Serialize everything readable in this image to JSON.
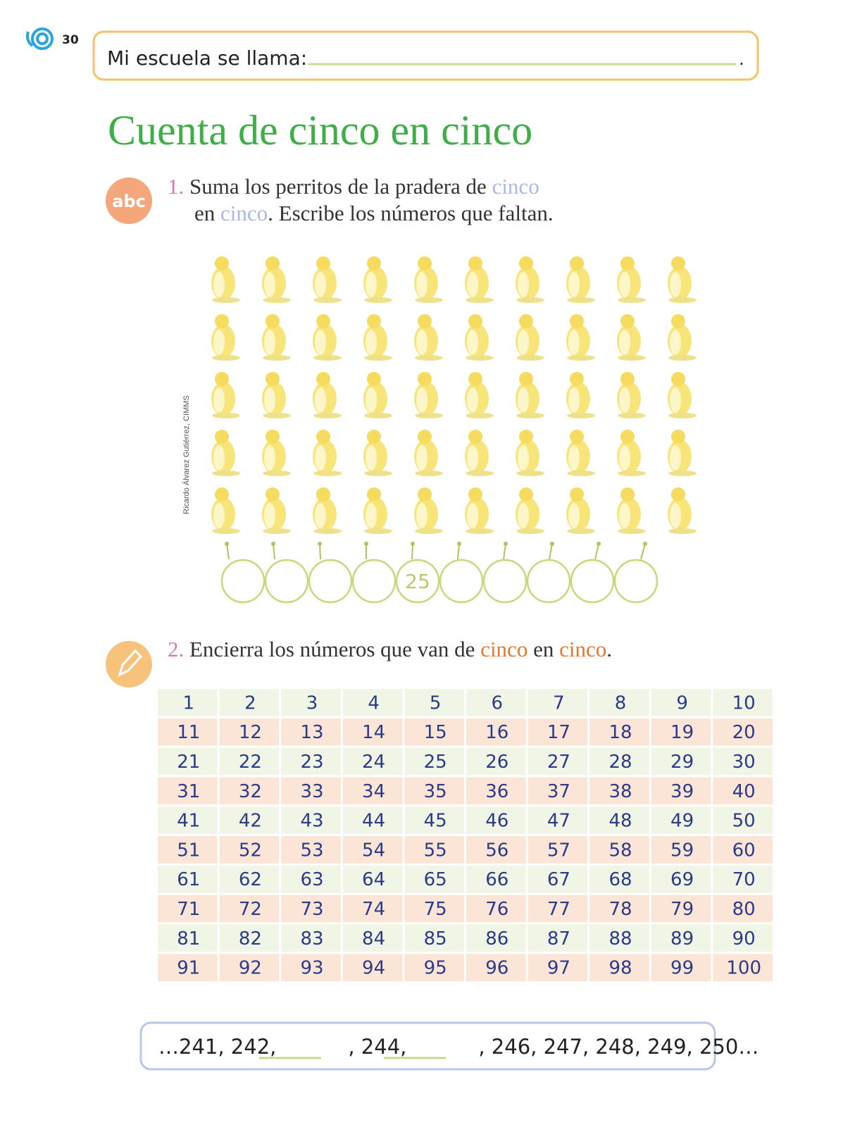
{
  "header": {
    "page_number": "30",
    "school_label": "Mi escuela se llama:",
    "end_mark": "."
  },
  "title": "Cuenta de cinco en cinco",
  "exercise1": {
    "number": "1.",
    "line1": [
      "Suma los perritos de la pradera de ",
      "cinco"
    ],
    "line2": [
      "en ",
      "cinco",
      ". Escribe los números que faltan."
    ],
    "credit": "Ricardo Álvarez Gutiérrez, CIMMS",
    "circles": [
      null,
      null,
      null,
      null,
      "25",
      null,
      null,
      null,
      null,
      null
    ]
  },
  "exercise2": {
    "number": "2.",
    "parts": [
      "Encierra los números que van de ",
      "cinco",
      " en ",
      "cinco",
      "."
    ]
  },
  "table": {
    "rows": [
      [
        1,
        2,
        3,
        4,
        5,
        6,
        7,
        8,
        9,
        10
      ],
      [
        11,
        12,
        13,
        14,
        15,
        16,
        17,
        18,
        19,
        20
      ],
      [
        21,
        22,
        23,
        24,
        25,
        26,
        27,
        28,
        29,
        30
      ],
      [
        31,
        32,
        33,
        34,
        35,
        36,
        37,
        38,
        39,
        40
      ],
      [
        41,
        42,
        43,
        44,
        45,
        46,
        47,
        48,
        49,
        50
      ],
      [
        51,
        52,
        53,
        54,
        55,
        56,
        57,
        58,
        59,
        60
      ],
      [
        61,
        62,
        63,
        64,
        65,
        66,
        67,
        68,
        69,
        70
      ],
      [
        71,
        72,
        73,
        74,
        75,
        76,
        77,
        78,
        79,
        80
      ],
      [
        81,
        82,
        83,
        84,
        85,
        86,
        87,
        88,
        89,
        90
      ],
      [
        91,
        92,
        93,
        94,
        95,
        96,
        97,
        98,
        99,
        100
      ]
    ]
  },
  "sequence": {
    "parts": [
      "…241, 242,",
      ", 244,",
      ", 246, 247, 248, 249, 250…"
    ]
  }
}
